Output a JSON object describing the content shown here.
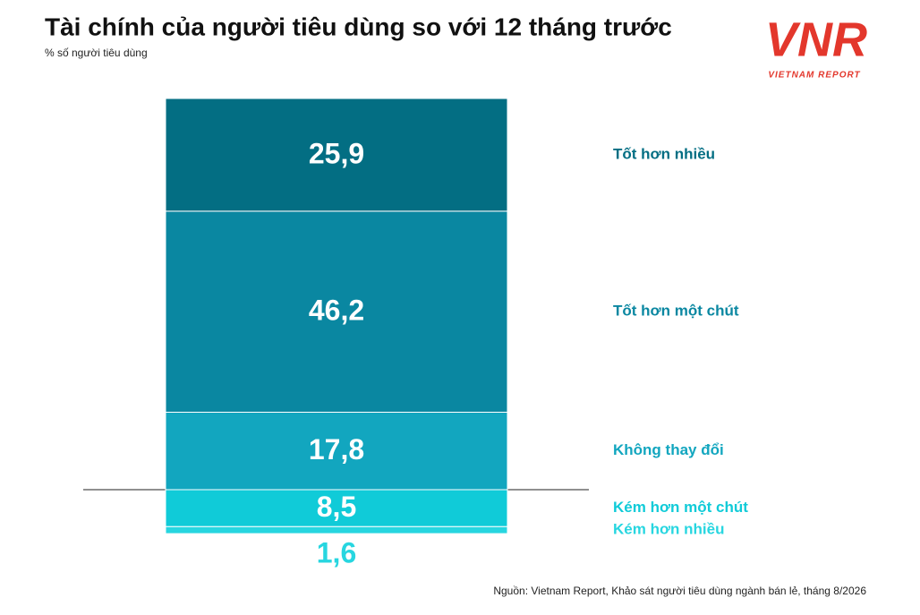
{
  "chart_data": {
    "type": "diverging-stacked-bar",
    "title": "Tài chính của người tiêu dùng so với 12 tháng trước",
    "subtitle": "% số người tiêu dùng",
    "source": "Nguồn: Vietnam Report, Khảo sát người tiêu dùng ngành bán lẻ, tháng 8/2026",
    "logo": {
      "mark": "VNR",
      "text": "VIETNAM REPORT"
    },
    "series": [
      {
        "name": "Tốt hơn nhiều",
        "color": "#036e83",
        "side": "above",
        "values": [
          25.9
        ],
        "value_labels": [
          "25,9"
        ]
      },
      {
        "name": "Tốt hơn một chút",
        "color": "#0a87a1",
        "side": "above",
        "values": [
          46.2
        ],
        "value_labels": [
          "46,2"
        ]
      },
      {
        "name": "Không thay đổi",
        "color": "#12a6bf",
        "side": "above",
        "values": [
          17.8
        ],
        "value_labels": [
          "17,8"
        ]
      },
      {
        "name": "Kém hơn một chút",
        "color": "#10cbd8",
        "side": "below",
        "values": [
          8.5
        ],
        "value_labels": [
          "8,5"
        ]
      },
      {
        "name": "Kém hơn nhiều",
        "color": "#27d6e0",
        "side": "below",
        "values": [
          1.6
        ],
        "value_labels": [
          "1,6"
        ]
      }
    ]
  }
}
